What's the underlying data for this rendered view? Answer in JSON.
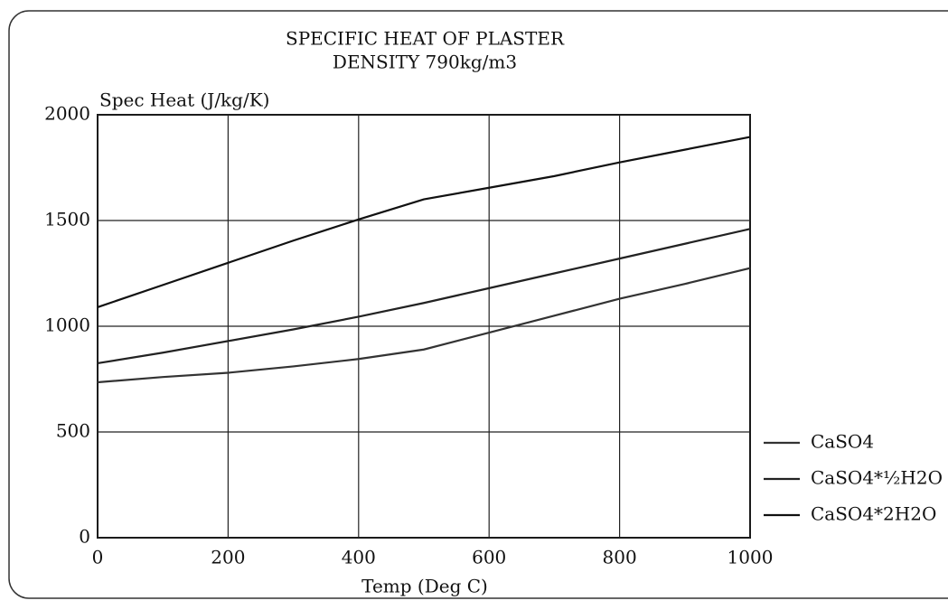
{
  "chart_data": {
    "type": "line",
    "title": "SPECIFIC HEAT OF PLASTER",
    "subtitle": "DENSITY 790kg/m3",
    "y_label": "Spec Heat (J/kg/K)",
    "x_label": "Temp (Deg C)",
    "x": [
      0,
      100,
      200,
      300,
      400,
      500,
      600,
      700,
      800,
      900,
      1000
    ],
    "series": [
      {
        "name": "CaSO4",
        "color": "#333333",
        "values": [
          735,
          760,
          780,
          810,
          845,
          890,
          970,
          1050,
          1130,
          1200,
          1275
        ]
      },
      {
        "name": "CaSO4*½H2O",
        "color": "#222222",
        "values": [
          825,
          875,
          930,
          985,
          1045,
          1110,
          1180,
          1250,
          1320,
          1390,
          1460
        ]
      },
      {
        "name": "CaSO4*2H2O",
        "color": "#111111",
        "values": [
          1090,
          1195,
          1300,
          1405,
          1505,
          1600,
          1655,
          1710,
          1775,
          1835,
          1895
        ]
      }
    ],
    "xlim": [
      0,
      1000
    ],
    "xticks": [
      0,
      200,
      400,
      600,
      800,
      1000
    ],
    "ylim": [
      0,
      2000
    ],
    "yticks": [
      0,
      500,
      1000,
      1500,
      2000
    ],
    "grid": true,
    "legend": "right"
  }
}
